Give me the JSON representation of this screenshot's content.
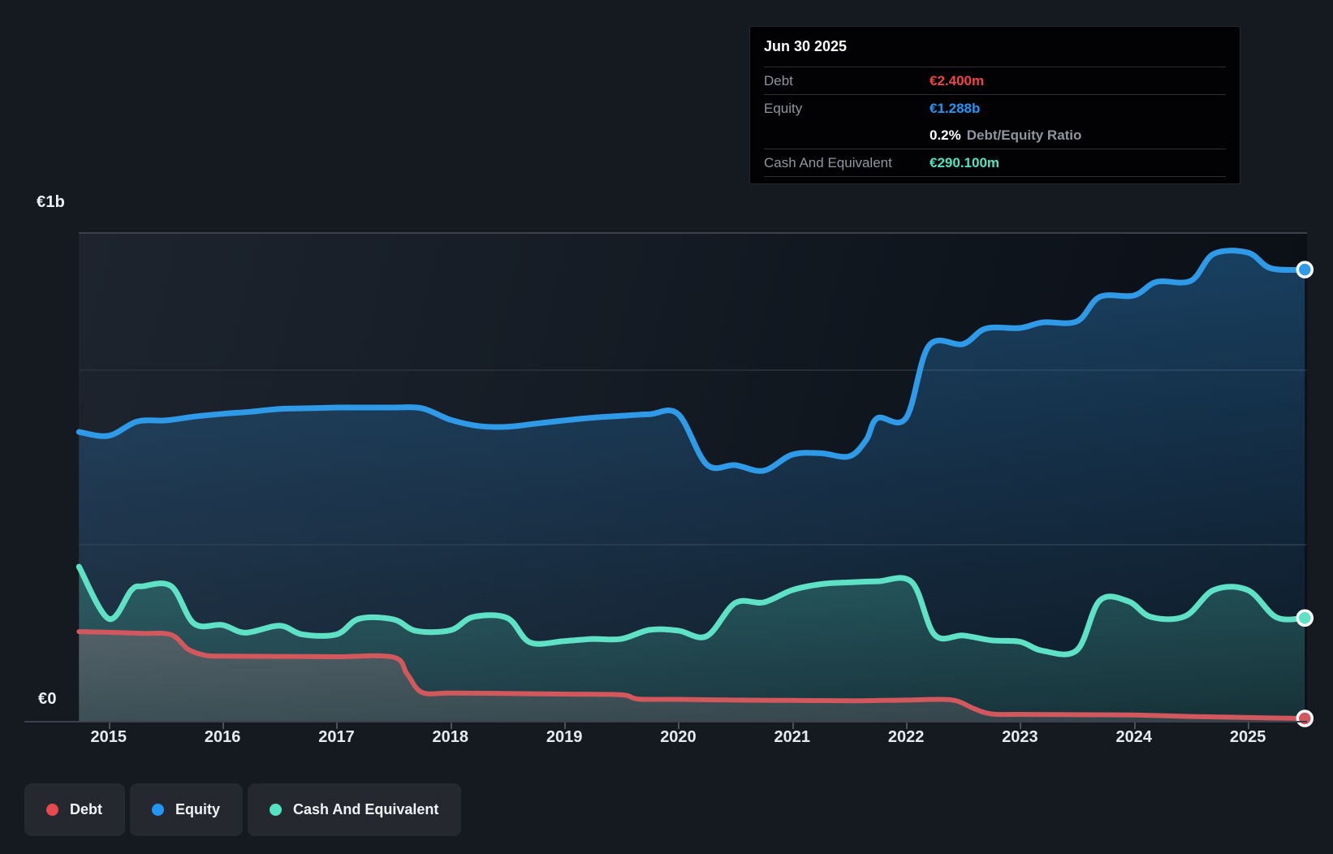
{
  "tooltip": {
    "date": "Jun 30 2025",
    "debt": {
      "label": "Debt",
      "value": "€2.400m",
      "color": "#ef4449"
    },
    "equity": {
      "label": "Equity",
      "value": "€1.288b",
      "color": "#2196f3"
    },
    "ratio": {
      "value": "0.2%",
      "label": "Debt/Equity Ratio"
    },
    "cash": {
      "label": "Cash And Equivalent",
      "value": "€290.100m",
      "color": "#50e3c2"
    }
  },
  "y_axis": {
    "top_label": "€1b",
    "bottom_label": "€0"
  },
  "x_axis": {
    "years": [
      "2015",
      "2016",
      "2017",
      "2018",
      "2019",
      "2020",
      "2021",
      "2022",
      "2023",
      "2024",
      "2025"
    ]
  },
  "legend": [
    {
      "label": "Debt",
      "color": "#e6494e"
    },
    {
      "label": "Equity",
      "color": "#2196f3"
    },
    {
      "label": "Cash And Equivalent",
      "color": "#54e2c3"
    }
  ],
  "chart_data": {
    "type": "area",
    "title": "Debt to Equity history (Jun 30 2025: Debt €2.400m, Equity €1.288b, Cash €290.100m)",
    "x_unit": "decimal_year",
    "x_range": [
      2014.74,
      2025.52
    ],
    "y_unit": "EUR millions",
    "ylim": [
      0,
      1393
    ],
    "gridline_values": [
      0,
      500,
      1000
    ],
    "grid_on": true,
    "legend_position": "bottom-left",
    "series": [
      {
        "name": "Equity",
        "color": "#2f9be8",
        "stroke_width": 7,
        "points": [
          [
            2014.74,
            823
          ],
          [
            2015.0,
            812
          ],
          [
            2015.25,
            853
          ],
          [
            2015.5,
            856
          ],
          [
            2015.75,
            867
          ],
          [
            2016.0,
            875
          ],
          [
            2016.25,
            881
          ],
          [
            2016.5,
            889
          ],
          [
            2016.75,
            891
          ],
          [
            2017.0,
            893
          ],
          [
            2017.25,
            893
          ],
          [
            2017.5,
            893
          ],
          [
            2017.75,
            891
          ],
          [
            2018.0,
            858
          ],
          [
            2018.25,
            840
          ],
          [
            2018.5,
            838
          ],
          [
            2018.75,
            847
          ],
          [
            2019.0,
            856
          ],
          [
            2019.25,
            864
          ],
          [
            2019.5,
            869
          ],
          [
            2019.75,
            874
          ],
          [
            2020.0,
            874
          ],
          [
            2020.25,
            730
          ],
          [
            2020.5,
            728
          ],
          [
            2020.75,
            712
          ],
          [
            2021.0,
            758
          ],
          [
            2021.25,
            762
          ],
          [
            2021.5,
            753
          ],
          [
            2021.65,
            800
          ],
          [
            2021.75,
            863
          ],
          [
            2022.0,
            863
          ],
          [
            2022.2,
            1070
          ],
          [
            2022.5,
            1075
          ],
          [
            2022.7,
            1119
          ],
          [
            2023.0,
            1121
          ],
          [
            2023.2,
            1137
          ],
          [
            2023.5,
            1140
          ],
          [
            2023.7,
            1210
          ],
          [
            2024.0,
            1214
          ],
          [
            2024.2,
            1253
          ],
          [
            2024.5,
            1256
          ],
          [
            2024.7,
            1333
          ],
          [
            2025.0,
            1337
          ],
          [
            2025.2,
            1292
          ],
          [
            2025.5,
            1288
          ]
        ]
      },
      {
        "name": "Cash And Equivalent",
        "color": "#5ee1c4",
        "stroke_width": 7,
        "points": [
          [
            2014.74,
            437
          ],
          [
            2015.0,
            288
          ],
          [
            2015.2,
            370
          ],
          [
            2015.3,
            381
          ],
          [
            2015.55,
            381
          ],
          [
            2015.75,
            274
          ],
          [
            2016.0,
            270
          ],
          [
            2016.2,
            248
          ],
          [
            2016.5,
            268
          ],
          [
            2016.7,
            243
          ],
          [
            2017.0,
            243
          ],
          [
            2017.2,
            288
          ],
          [
            2017.5,
            286
          ],
          [
            2017.7,
            253
          ],
          [
            2018.0,
            255
          ],
          [
            2018.2,
            293
          ],
          [
            2018.5,
            290
          ],
          [
            2018.7,
            220
          ],
          [
            2019.0,
            224
          ],
          [
            2019.25,
            230
          ],
          [
            2019.5,
            230
          ],
          [
            2019.75,
            256
          ],
          [
            2020.0,
            254
          ],
          [
            2020.25,
            238
          ],
          [
            2020.5,
            333
          ],
          [
            2020.75,
            335
          ],
          [
            2021.0,
            370
          ],
          [
            2021.25,
            387
          ],
          [
            2021.5,
            392
          ],
          [
            2021.75,
            395
          ],
          [
            2022.05,
            393
          ],
          [
            2022.25,
            242
          ],
          [
            2022.5,
            240
          ],
          [
            2022.75,
            226
          ],
          [
            2023.0,
            222
          ],
          [
            2023.2,
            196
          ],
          [
            2023.5,
            198
          ],
          [
            2023.7,
            340
          ],
          [
            2023.95,
            338
          ],
          [
            2024.15,
            293
          ],
          [
            2024.45,
            295
          ],
          [
            2024.7,
            370
          ],
          [
            2025.0,
            370
          ],
          [
            2025.25,
            292
          ],
          [
            2025.5,
            290.1
          ]
        ]
      },
      {
        "name": "Debt",
        "color": "#d2585d",
        "stroke_width": 6,
        "points": [
          [
            2014.74,
            251
          ],
          [
            2015.0,
            249
          ],
          [
            2015.3,
            246
          ],
          [
            2015.55,
            242
          ],
          [
            2015.7,
            200
          ],
          [
            2015.85,
            183
          ],
          [
            2016.0,
            181
          ],
          [
            2016.5,
            180
          ],
          [
            2017.0,
            179
          ],
          [
            2017.5,
            178
          ],
          [
            2017.62,
            130
          ],
          [
            2017.75,
            77
          ],
          [
            2018.0,
            75
          ],
          [
            2018.5,
            74
          ],
          [
            2019.0,
            72
          ],
          [
            2019.5,
            70
          ],
          [
            2019.65,
            58
          ],
          [
            2020.0,
            57
          ],
          [
            2020.5,
            55
          ],
          [
            2021.0,
            54
          ],
          [
            2021.5,
            53
          ],
          [
            2021.8,
            54
          ],
          [
            2022.0,
            55
          ],
          [
            2022.3,
            57
          ],
          [
            2022.45,
            52
          ],
          [
            2022.6,
            30
          ],
          [
            2022.75,
            15
          ],
          [
            2023.0,
            14
          ],
          [
            2023.5,
            13
          ],
          [
            2024.0,
            12
          ],
          [
            2024.5,
            8
          ],
          [
            2025.0,
            5
          ],
          [
            2025.5,
            2.4
          ]
        ]
      }
    ]
  }
}
